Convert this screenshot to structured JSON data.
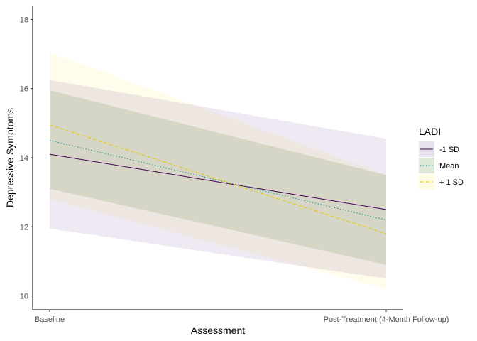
{
  "chart_data": {
    "type": "line",
    "xlabel": "Assessment",
    "ylabel": "Depressive Symptoms",
    "categories": [
      "Baseline",
      "Post-Treatment (4-Month Follow-up)"
    ],
    "ylim": [
      9.6,
      18.4
    ],
    "yticks": [
      10,
      12,
      14,
      16,
      18
    ],
    "grid": false,
    "legend": {
      "title": "LADI",
      "position": "right"
    },
    "series": [
      {
        "name": "-1 SD",
        "values": [
          14.1,
          12.5
        ],
        "lower": [
          11.95,
          10.5
        ],
        "upper": [
          16.25,
          14.55
        ],
        "line_color": "#440154",
        "fill_color": "#e8e1ee",
        "dash": "solid"
      },
      {
        "name": "Mean",
        "values": [
          14.5,
          12.2
        ],
        "lower": [
          13.1,
          10.9
        ],
        "upper": [
          15.95,
          13.5
        ],
        "line_color": "#21908c",
        "fill_color": "#dde8d8",
        "dash": "dotted"
      },
      {
        "name": "+ 1 SD",
        "values": [
          14.95,
          11.8
        ],
        "lower": [
          12.8,
          10.2
        ],
        "upper": [
          17.05,
          13.5
        ],
        "line_color": "#e6c800",
        "fill_color": "#fffbe5",
        "dash": "dashed"
      }
    ]
  }
}
